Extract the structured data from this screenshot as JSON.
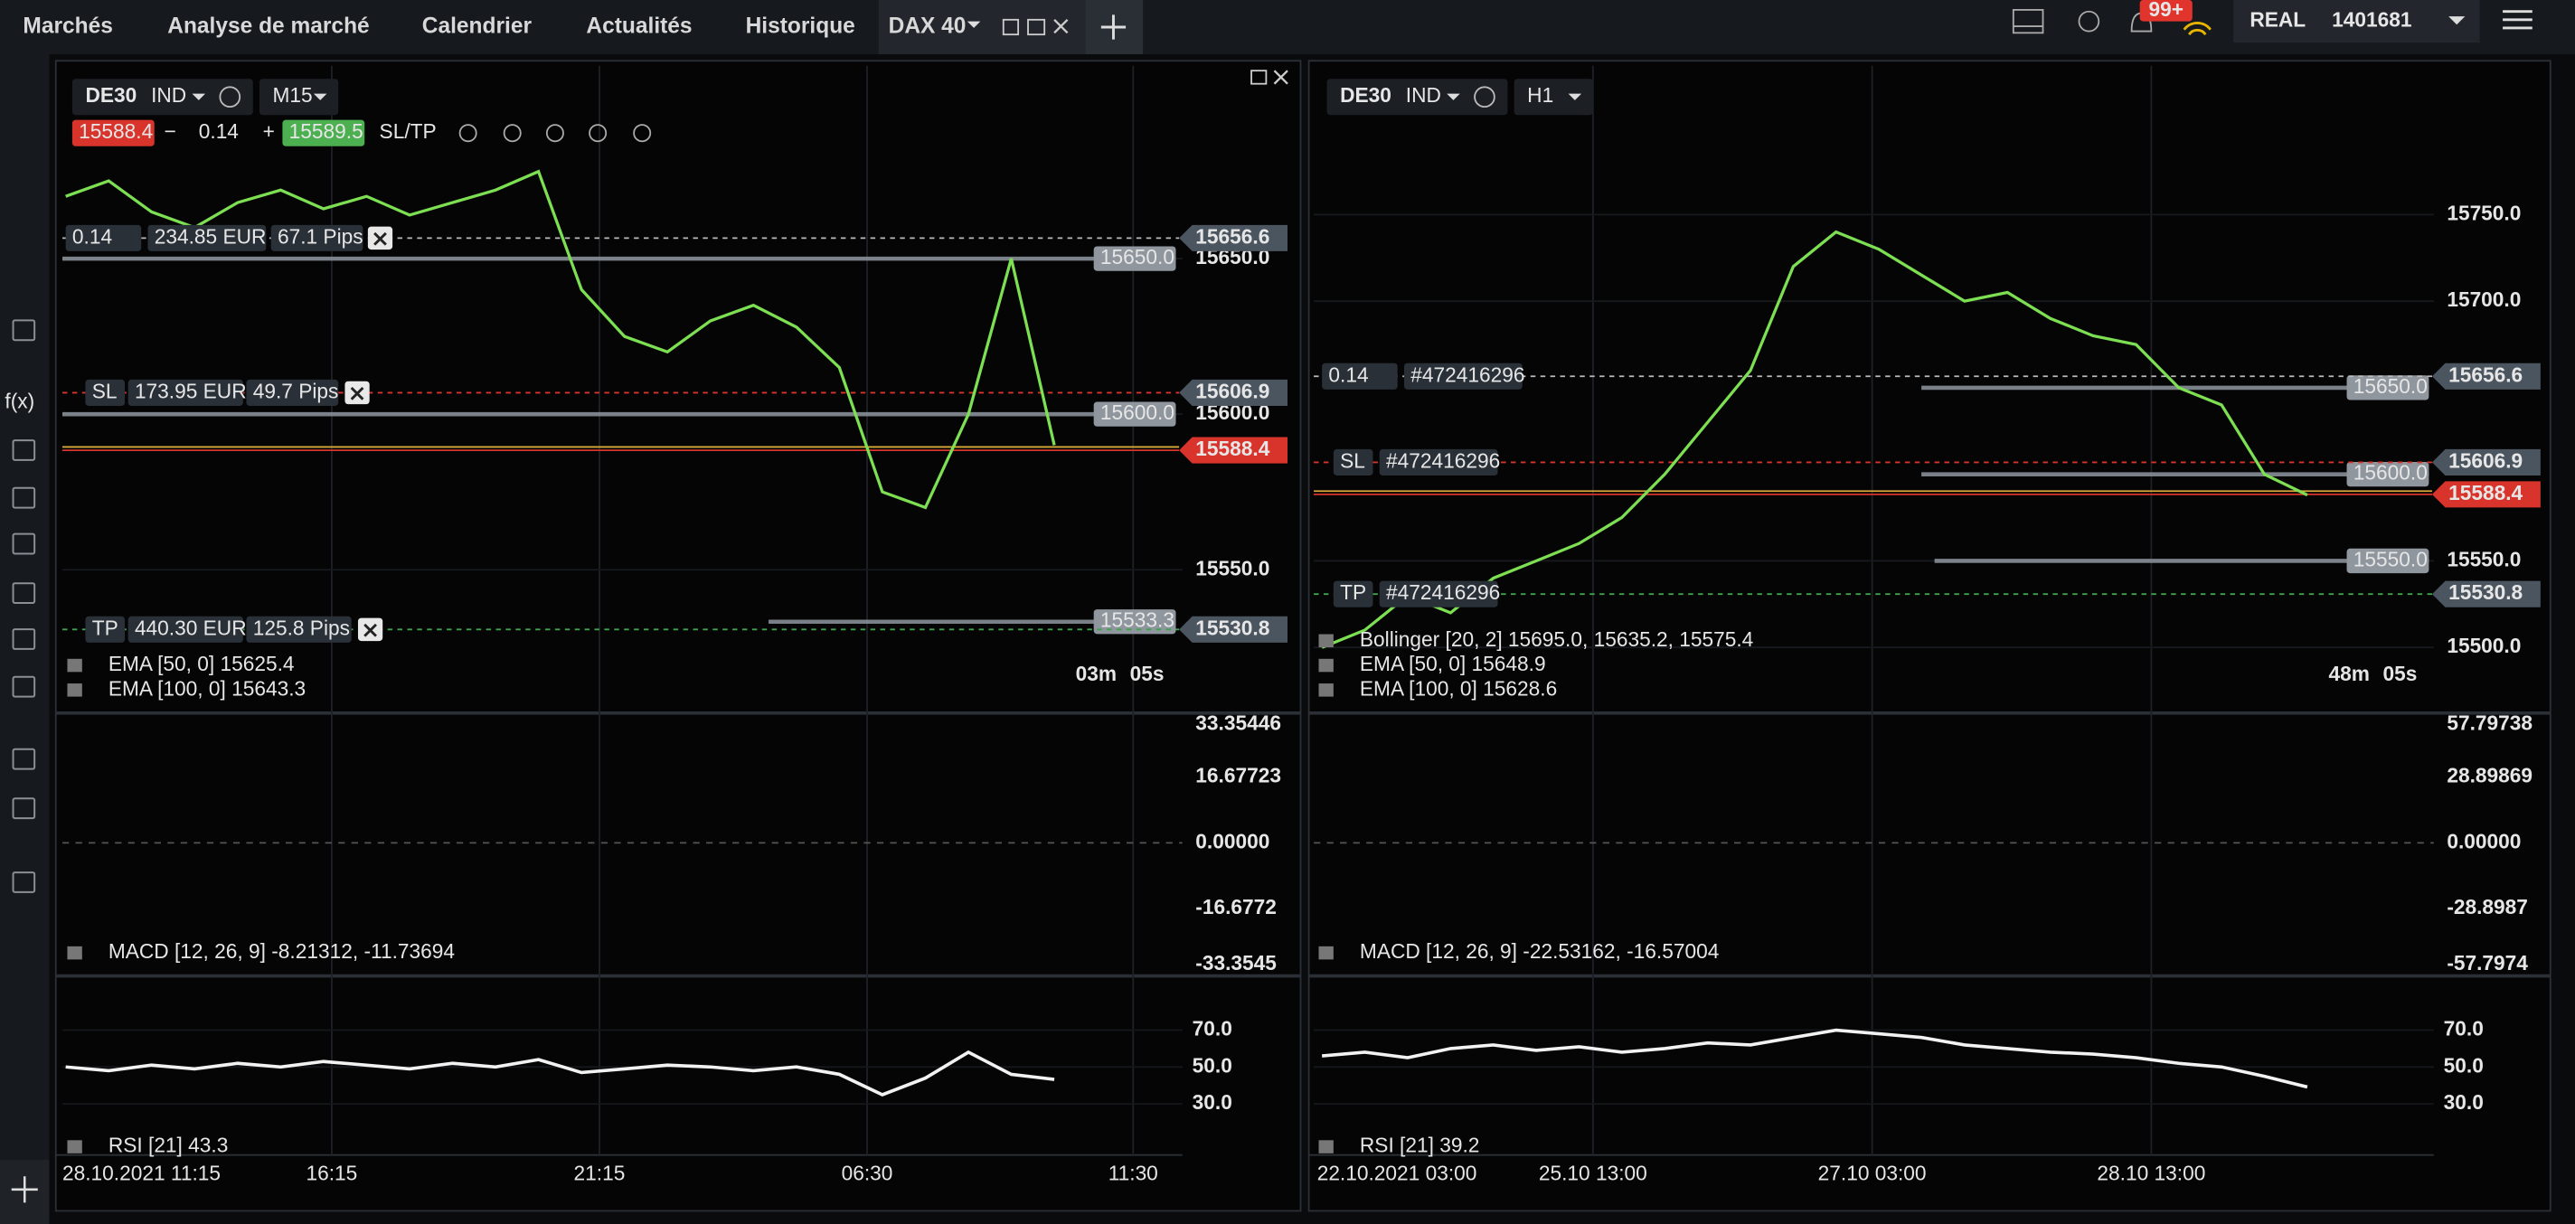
{
  "top_bar": {
    "tabs": [
      "Marchés",
      "Analyse de marché",
      "Calendrier",
      "Actualités",
      "Historique"
    ],
    "instrument_tab": "DAX 40",
    "notifications": "99+",
    "account_type": "REAL",
    "account_number": "1401681"
  },
  "sidebar": {
    "formula": "f(x)"
  },
  "charts": [
    {
      "symbol": "DE30",
      "market": "IND",
      "timeframe": "M15",
      "trade_bar": {
        "bid": "15588.4",
        "volume": "0.14",
        "ask": "15589.5",
        "sltp": "SL/TP"
      },
      "position": {
        "volume": "0.14",
        "amount": "234.85 EUR",
        "pips": "67.1 Pips"
      },
      "sl": {
        "label": "SL",
        "amount": "173.95 EUR",
        "pips": "49.7 Pips"
      },
      "tp": {
        "label": "TP",
        "amount": "440.30 EUR",
        "pips": "125.8 Pips"
      },
      "ylim": [
        15505,
        15712
      ],
      "yticks": [
        {
          "value": 15650,
          "label": "15650.0"
        },
        {
          "value": 15600,
          "label": "15600.0"
        },
        {
          "value": 15550,
          "label": "15550.0"
        }
      ],
      "levels": [
        {
          "value": 15650,
          "label": "15650.0"
        },
        {
          "value": 15600,
          "label": "15600.0"
        },
        {
          "value": 15533.3,
          "label": "15533.3"
        }
      ],
      "tags": [
        15656.6,
        15606.9,
        15588.4,
        15530.8
      ],
      "close": [
        15670,
        15675,
        15665,
        15660,
        15668,
        15672,
        15666,
        15670,
        15664,
        15668,
        15672,
        15678,
        15640,
        15625,
        15620,
        15630,
        15635,
        15628,
        15615,
        15575,
        15570,
        15600,
        15650,
        15590
      ],
      "legends": [
        "EMA [50, 0] 15625.4",
        "EMA [100, 0] 15643.3"
      ],
      "timer": {
        "minutes": "03m",
        "seconds": "05s"
      },
      "macd_labels": [
        "33.35446",
        "16.67723",
        "0.00000",
        "-16.6772",
        "-33.3545"
      ],
      "macd_legend": "MACD [12, 26, 9] -8.21312, -11.73694",
      "rsi_ylim": [
        5,
        94
      ],
      "rsi_ticks": [
        {
          "value": 70,
          "label": "70.0"
        },
        {
          "value": 50,
          "label": "50.0"
        },
        {
          "value": 30,
          "label": "30.0"
        }
      ],
      "rsi": [
        50,
        48,
        51,
        49,
        52,
        50,
        53,
        51,
        49,
        52,
        50,
        54,
        47,
        49,
        51,
        50,
        48,
        50,
        46,
        35,
        44,
        58,
        46,
        43.3
      ],
      "rsi_legend": "RSI [21] 43.3",
      "time_labels": [
        "28.10.2021 11:15",
        "16:15",
        "21:15",
        "06:30",
        "11:30"
      ]
    },
    {
      "symbol": "DE30",
      "market": "IND",
      "timeframe": "H1",
      "position": {
        "volume": "0.14",
        "id": "#472416296"
      },
      "sl": {
        "label": "SL",
        "id": "#472416296"
      },
      "tp": {
        "label": "TP",
        "id": "#472416296"
      },
      "ylim": [
        15464,
        15836
      ],
      "yticks": [
        {
          "value": 15750,
          "label": "15750.0"
        },
        {
          "value": 15700,
          "label": "15700.0"
        },
        {
          "value": 15550,
          "label": "15550.0"
        },
        {
          "value": 15500,
          "label": "15500.0"
        }
      ],
      "levels": [
        {
          "value": 15650,
          "label": "15650.0"
        },
        {
          "value": 15600,
          "label": "15600.0"
        },
        {
          "value": 15550,
          "label": "15550.0"
        }
      ],
      "tags": [
        15656.6,
        15606.9,
        15588.4,
        15530.8
      ],
      "close": [
        15500,
        15510,
        15530,
        15520,
        15540,
        15550,
        15560,
        15575,
        15600,
        15630,
        15660,
        15720,
        15740,
        15730,
        15715,
        15700,
        15705,
        15690,
        15680,
        15675,
        15650,
        15640,
        15600,
        15588
      ],
      "legends": [
        "Bollinger [20, 2] 15695.0, 15635.2, 15575.4",
        "EMA [50, 0] 15648.9",
        "EMA [100, 0] 15628.6"
      ],
      "timer": {
        "minutes": "48m",
        "seconds": "05s"
      },
      "macd_labels": [
        "57.79738",
        "28.89869",
        "0.00000",
        "-28.8987",
        "-57.7974"
      ],
      "macd_legend": "MACD [12, 26, 9] -22.53162, -16.57004",
      "rsi_ylim": [
        5,
        94
      ],
      "rsi_ticks": [
        {
          "value": 70,
          "label": "70.0"
        },
        {
          "value": 50,
          "label": "50.0"
        },
        {
          "value": 30,
          "label": "30.0"
        }
      ],
      "rsi": [
        56,
        58,
        55,
        60,
        62,
        59,
        61,
        58,
        60,
        63,
        62,
        66,
        70,
        68,
        66,
        62,
        60,
        58,
        57,
        55,
        52,
        50,
        45,
        39.2
      ],
      "rsi_legend": "RSI [21] 39.2",
      "time_labels": [
        "22.10.2021 03:00",
        "25.10 13:00",
        "27.10 03:00",
        "28.10 13:00"
      ]
    }
  ]
}
